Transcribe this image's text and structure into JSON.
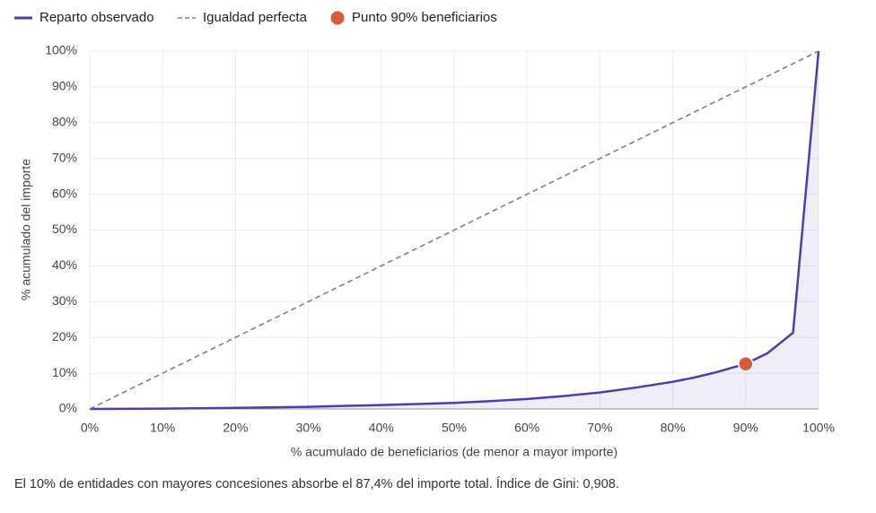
{
  "chart_data": {
    "type": "line",
    "xlabel": "% acumulado de beneficiarios (de menor a mayor importe)",
    "ylabel": "% acumulado del importe",
    "annotation": "El 10% de entidades con mayores concesiones absorbe el 87,4% del importe total. Índice de Gini: 0,908.",
    "xlim": [
      0,
      100
    ],
    "ylim": [
      0,
      100
    ],
    "grid": true,
    "xticks": [
      {
        "value": 0,
        "label": "0%"
      },
      {
        "value": 10,
        "label": "10%"
      },
      {
        "value": 20,
        "label": "20%"
      },
      {
        "value": 30,
        "label": "30%"
      },
      {
        "value": 40,
        "label": "40%"
      },
      {
        "value": 50,
        "label": "50%"
      },
      {
        "value": 60,
        "label": "60%"
      },
      {
        "value": 70,
        "label": "70%"
      },
      {
        "value": 80,
        "label": "80%"
      },
      {
        "value": 90,
        "label": "90%"
      },
      {
        "value": 100,
        "label": "100%"
      }
    ],
    "yticks": [
      {
        "value": 0,
        "label": "0%"
      },
      {
        "value": 10,
        "label": "10%"
      },
      {
        "value": 20,
        "label": "20%"
      },
      {
        "value": 30,
        "label": "30%"
      },
      {
        "value": 40,
        "label": "40%"
      },
      {
        "value": 50,
        "label": "50%"
      },
      {
        "value": 60,
        "label": "60%"
      },
      {
        "value": 70,
        "label": "70%"
      },
      {
        "value": 80,
        "label": "80%"
      },
      {
        "value": 90,
        "label": "90%"
      },
      {
        "value": 100,
        "label": "100%"
      }
    ],
    "series": [
      {
        "name": "Reparto observado",
        "color": "#4b3fb0",
        "style": "area",
        "x": [
          0,
          10,
          20,
          30,
          40,
          50,
          55,
          60,
          65,
          70,
          75,
          80,
          83,
          86,
          90,
          93,
          96.5,
          100
        ],
        "values": [
          0,
          0.1,
          0.3,
          0.6,
          1.1,
          1.7,
          2.2,
          2.8,
          3.6,
          4.6,
          6.0,
          7.6,
          8.8,
          10.3,
          12.6,
          15.6,
          21.3,
          100
        ]
      },
      {
        "name": "Igualdad perfecta",
        "color": "#808080",
        "style": "dashed",
        "x": [
          0,
          100
        ],
        "values": [
          0,
          100
        ]
      },
      {
        "name": "Punto 90% beneficiarios",
        "color": "#d9583a",
        "style": "point",
        "x": [
          90
        ],
        "values": [
          12.6
        ]
      }
    ]
  }
}
